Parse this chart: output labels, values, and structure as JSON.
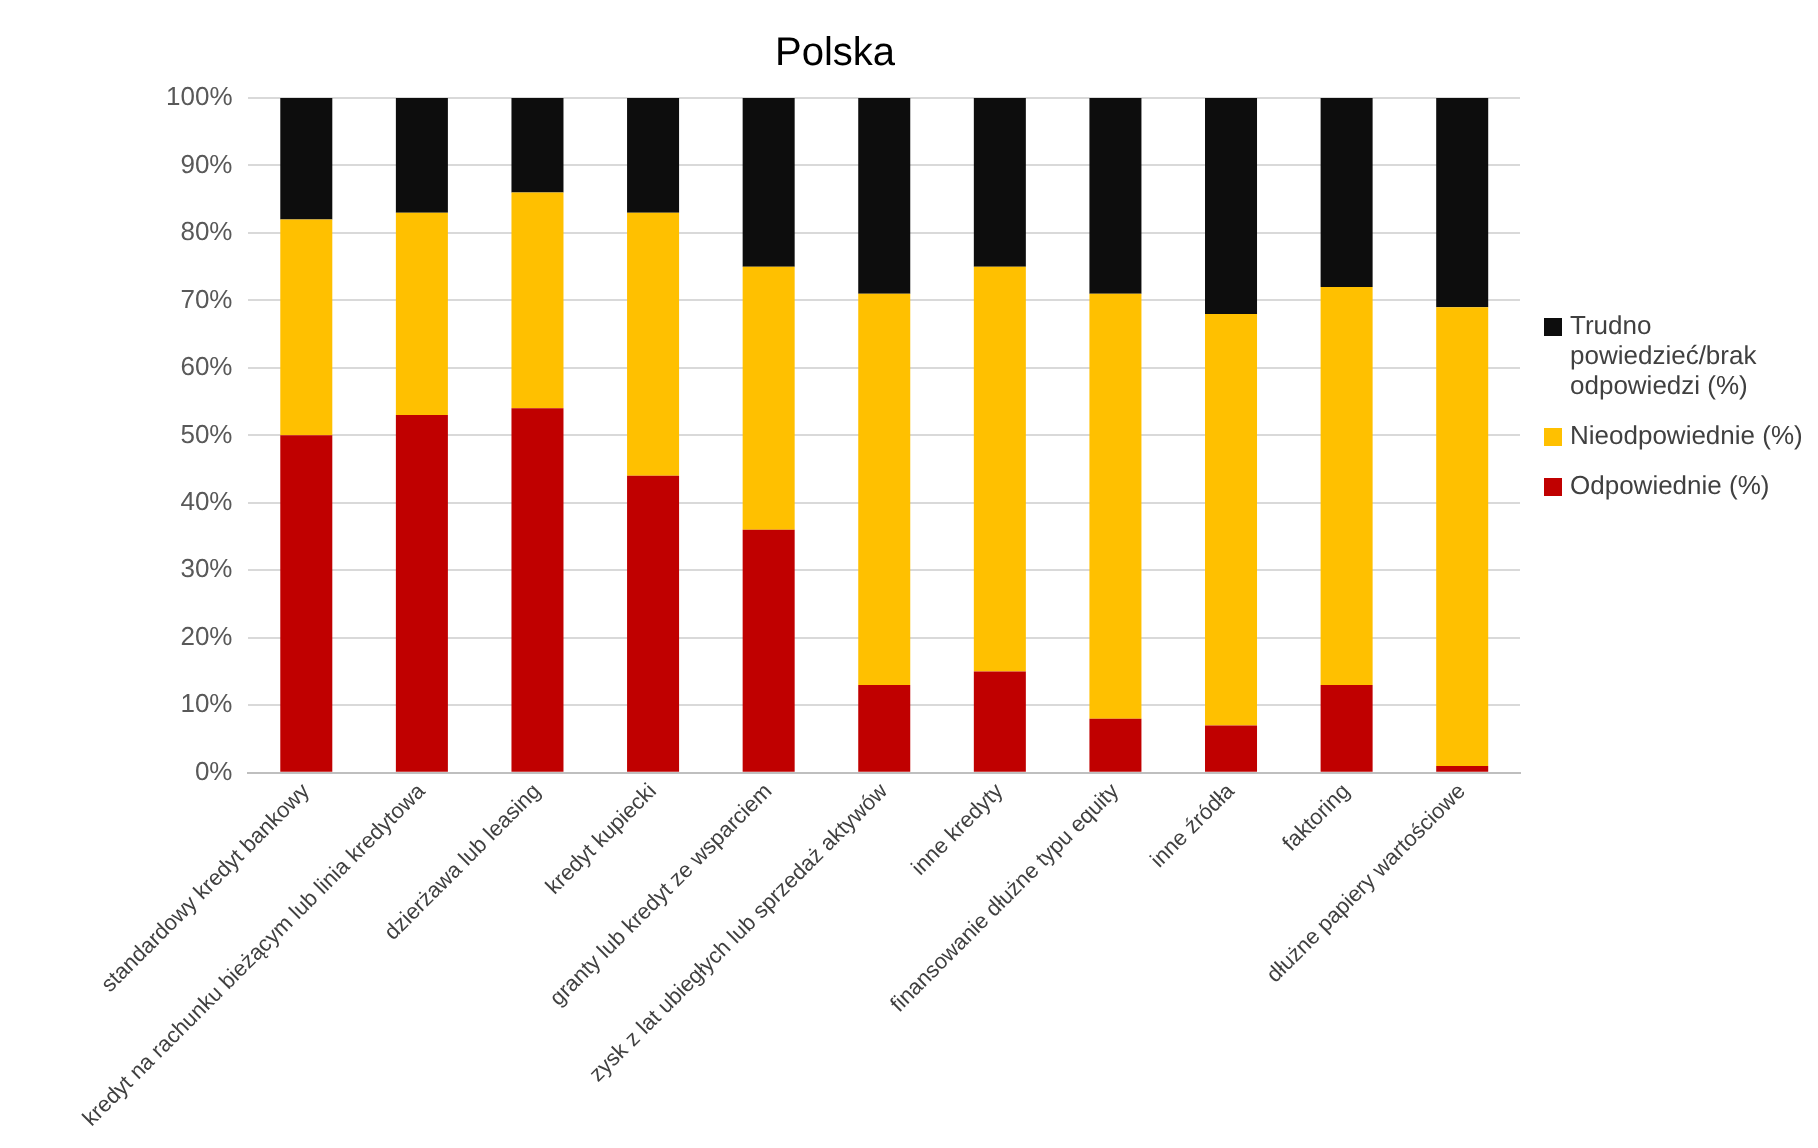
{
  "chart_data": {
    "type": "bar",
    "title": "Polska",
    "stacked": true,
    "categories": [
      "standardowy kredyt bankowy",
      "kredyt na rachunku bieżącym lub linia kredytowa",
      "dzierżawa lub leasing",
      "kredyt kupiecki",
      "granty lub kredyt ze wsparciem",
      "zysk z lat ubiegłych lub sprzedaż aktywów",
      "inne kredyty",
      "finansowanie dłużne typu equity",
      "inne źródła",
      "faktoring",
      "dłużne papiery wartościowe"
    ],
    "series": [
      {
        "name": "Odpowiednie (%)",
        "color": "#c00000",
        "values": [
          50,
          53,
          54,
          44,
          36,
          13,
          15,
          8,
          7,
          13,
          1
        ]
      },
      {
        "name": "Nieodpowiednie (%)",
        "color": "#ffc000",
        "values": [
          32,
          30,
          32,
          39,
          39,
          58,
          60,
          63,
          61,
          59,
          68
        ]
      },
      {
        "name": "Trudno powiedzieć/brak odpowiedzi (%)",
        "color": "#0d0d0d",
        "values": [
          18,
          17,
          14,
          17,
          25,
          29,
          25,
          29,
          32,
          28,
          31
        ]
      }
    ],
    "ylim": [
      0,
      100
    ],
    "yticks": [
      {
        "value": 0,
        "label": "0%"
      },
      {
        "value": 10,
        "label": "10%"
      },
      {
        "value": 20,
        "label": "20%"
      },
      {
        "value": 30,
        "label": "30%"
      },
      {
        "value": 40,
        "label": "40%"
      },
      {
        "value": 50,
        "label": "50%"
      },
      {
        "value": 60,
        "label": "60%"
      },
      {
        "value": 70,
        "label": "70%"
      },
      {
        "value": 80,
        "label": "80%"
      },
      {
        "value": 90,
        "label": "90%"
      },
      {
        "value": 100,
        "label": "100%"
      }
    ],
    "grid": "y",
    "legend": "right"
  }
}
